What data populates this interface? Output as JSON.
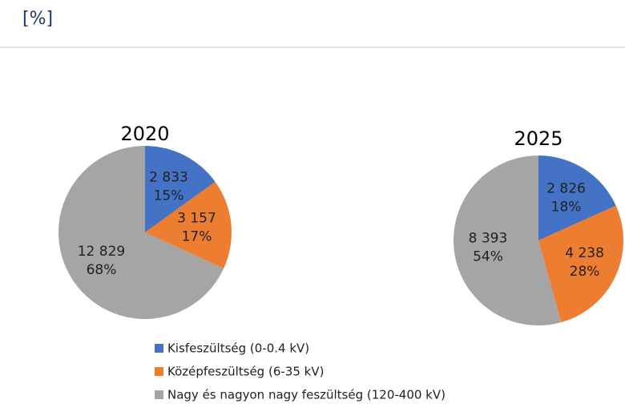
{
  "header": {
    "title": "[%]"
  },
  "legend": {
    "labels": [
      "Kisfeszültség (0-0.4 kV)",
      "Középfeszültség (6-35 kV)",
      "Nagy és nagyon nagy feszültség (120-400 kV)"
    ],
    "colors": [
      "#4472c4",
      "#ed7d31",
      "#a5a5a5"
    ]
  },
  "chart_data": [
    {
      "type": "pie",
      "title": "2020",
      "values": [
        2833,
        3157,
        12829
      ],
      "value_labels": [
        "2 833",
        "3 157",
        "12 829"
      ],
      "percents": [
        15,
        17,
        68
      ],
      "percent_labels": [
        "15%",
        "17%",
        "68%"
      ]
    },
    {
      "type": "pie",
      "title": "2025",
      "values": [
        2826,
        4238,
        8393
      ],
      "value_labels": [
        "2 826",
        "4 238",
        "8 393"
      ],
      "percents": [
        18,
        28,
        54
      ],
      "percent_labels": [
        "18%",
        "28%",
        "54%"
      ]
    }
  ]
}
